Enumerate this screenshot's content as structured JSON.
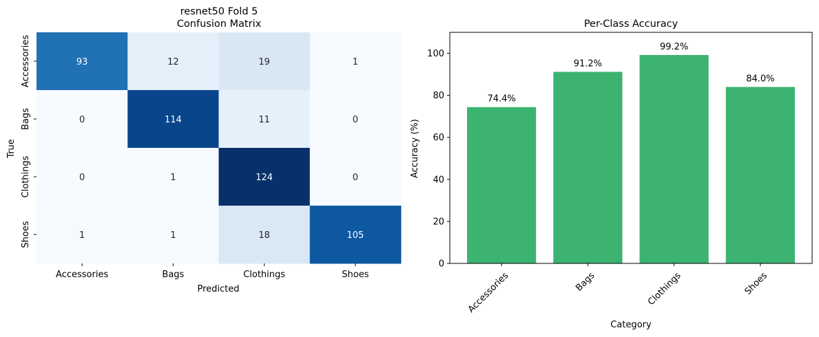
{
  "chart_data": [
    {
      "type": "heatmap",
      "title_line1": "resnet50 Fold 5",
      "title_line2": "Confusion Matrix",
      "xlabel": "Predicted",
      "ylabel": "True",
      "x_categories": [
        "Accessories",
        "Bags",
        "Clothings",
        "Shoes"
      ],
      "y_categories": [
        "Accessories",
        "Bags",
        "Clothings",
        "Shoes"
      ],
      "values": [
        [
          93,
          12,
          19,
          1
        ],
        [
          0,
          114,
          11,
          0
        ],
        [
          0,
          1,
          124,
          0
        ],
        [
          1,
          1,
          18,
          105
        ]
      ],
      "colormap": "Blues",
      "value_range": [
        0,
        124
      ]
    },
    {
      "type": "bar",
      "title": "Per-Class Accuracy",
      "xlabel": "Category",
      "ylabel": "Accuracy (%)",
      "categories": [
        "Accessories",
        "Bags",
        "Clothings",
        "Shoes"
      ],
      "values": [
        74.4,
        91.2,
        99.2,
        84.0
      ],
      "value_labels": [
        "74.4%",
        "91.2%",
        "99.2%",
        "84.0%"
      ],
      "ylim": [
        0,
        110
      ],
      "yticks": [
        0,
        20,
        40,
        60,
        80,
        100
      ],
      "bar_color": "#3cb371",
      "xtick_rotation": 45
    }
  ]
}
